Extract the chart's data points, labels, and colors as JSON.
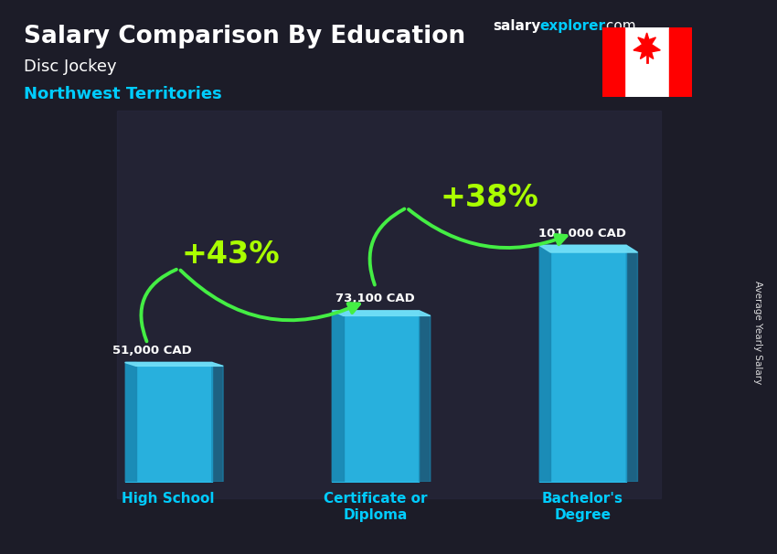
{
  "title1": "Salary Comparison By Education",
  "subtitle1": "Disc Jockey",
  "subtitle2": "Northwest Territories",
  "categories": [
    "High School",
    "Certificate or\nDiploma",
    "Bachelor's\nDegree"
  ],
  "values": [
    51000,
    73100,
    101000
  ],
  "value_labels": [
    "51,000 CAD",
    "73,100 CAD",
    "101,000 CAD"
  ],
  "pct_labels": [
    "+43%",
    "+38%"
  ],
  "bar_face_color": "#29c5f6",
  "bar_left_color": "#1a8ab5",
  "bar_top_color": "#72dff7",
  "bg_dark": "#1a1a2e",
  "title_color": "#ffffff",
  "subtitle1_color": "#ffffff",
  "subtitle2_color": "#00ccff",
  "category_color": "#00ccff",
  "value_color": "#ffffff",
  "pct_color": "#aaff00",
  "arrow_color": "#44ee44",
  "ylabel": "Average Yearly Salary",
  "ylim": [
    0,
    130000
  ],
  "bar_positions": [
    0,
    1,
    2
  ],
  "bar_width": 0.42,
  "brand_salary_color": "#ffffff",
  "brand_explorer_color": "#00ccff",
  "brand_com_color": "#ffffff"
}
